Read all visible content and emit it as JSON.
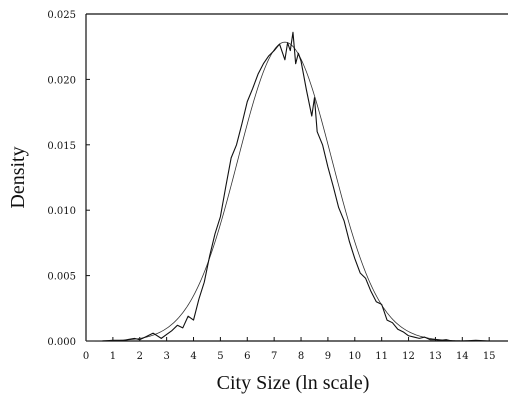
{
  "chart_data": {
    "type": "line",
    "xlabel": "City Size (ln scale)",
    "ylabel": "Density",
    "xlim": [
      0,
      15.7
    ],
    "ylim": [
      0,
      0.025
    ],
    "x_ticks": [
      "0",
      "1",
      "2",
      "3",
      "4",
      "5",
      "6",
      "7",
      "8",
      "9",
      "10",
      "11",
      "12",
      "13",
      "14",
      "15"
    ],
    "y_ticks": [
      "0.000",
      "0.005",
      "0.010",
      "0.015",
      "0.020",
      "0.025"
    ],
    "grid": false,
    "legend": "none",
    "series": [
      {
        "style": "jagged",
        "x": [
          0.6,
          1.0,
          1.4,
          1.8,
          2.0,
          2.2,
          2.5,
          2.8,
          3.0,
          3.2,
          3.4,
          3.6,
          3.8,
          4.0,
          4.2,
          4.4,
          4.6,
          4.8,
          5.0,
          5.2,
          5.4,
          5.6,
          5.8,
          6.0,
          6.2,
          6.4,
          6.6,
          6.8,
          7.0,
          7.2,
          7.4,
          7.5,
          7.6,
          7.7,
          7.8,
          7.9,
          8.0,
          8.2,
          8.4,
          8.5,
          8.6,
          8.8,
          9.0,
          9.2,
          9.4,
          9.6,
          9.8,
          10.0,
          10.2,
          10.4,
          10.6,
          10.8,
          11.0,
          11.2,
          11.4,
          11.6,
          11.8,
          12.0,
          12.2,
          12.4,
          12.6,
          12.8,
          13.0,
          13.2,
          13.4,
          13.6,
          14.0,
          14.5,
          15.0,
          15.7
        ],
        "y": [
          0.0,
          5e-05,
          5e-05,
          0.0002,
          0.0001,
          0.0003,
          0.0006,
          0.0002,
          0.0005,
          0.0008,
          0.0012,
          0.001,
          0.0019,
          0.0016,
          0.0032,
          0.0045,
          0.0065,
          0.0082,
          0.0095,
          0.0118,
          0.014,
          0.015,
          0.0166,
          0.0183,
          0.0193,
          0.0204,
          0.0212,
          0.0218,
          0.0222,
          0.0227,
          0.0215,
          0.0228,
          0.0222,
          0.0236,
          0.0212,
          0.022,
          0.0214,
          0.0192,
          0.0172,
          0.0186,
          0.016,
          0.015,
          0.0133,
          0.0118,
          0.0102,
          0.0092,
          0.0076,
          0.0063,
          0.0052,
          0.0048,
          0.0038,
          0.003,
          0.0028,
          0.0016,
          0.0014,
          0.0009,
          0.0007,
          0.0004,
          0.0003,
          0.0002,
          0.0003,
          0.0001,
          0.0001,
          5e-05,
          0.0001,
          0.0,
          0.0,
          5e-05,
          0.0,
          0.0
        ]
      },
      {
        "style": "smooth",
        "distribution": "normal",
        "mean": 7.4,
        "sd": 1.75,
        "peak": 0.02285
      }
    ]
  }
}
